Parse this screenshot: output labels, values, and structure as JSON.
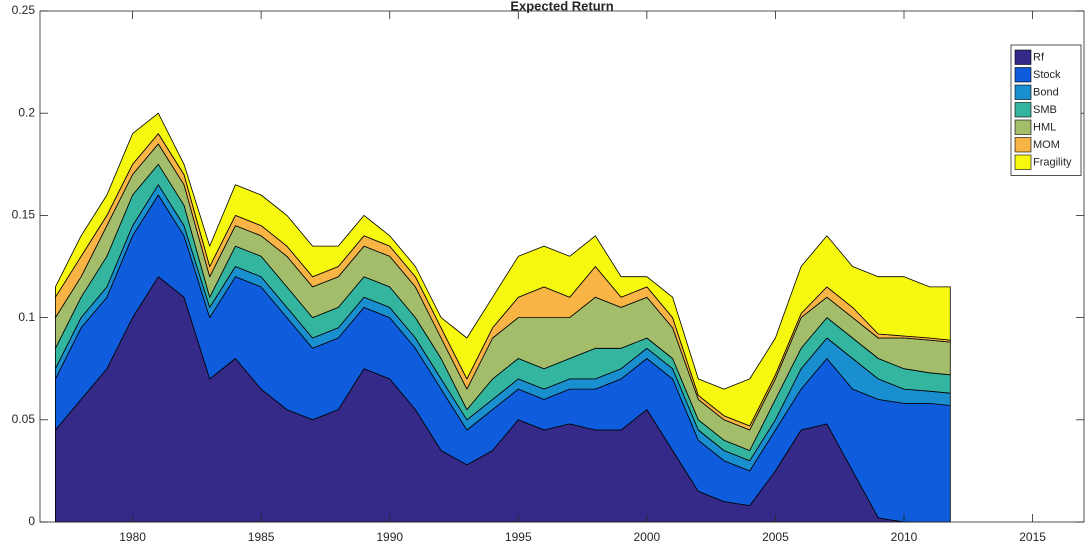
{
  "chart_data": {
    "type": "stacked_area",
    "title": "Expected Return",
    "x": [
      1977,
      1978,
      1979,
      1980,
      1981,
      1982,
      1983,
      1984,
      1985,
      1986,
      1987,
      1988,
      1989,
      1990,
      1991,
      1992,
      1993,
      1994,
      1995,
      1996,
      1997,
      1998,
      1999,
      2000,
      2001,
      2002,
      2003,
      2004,
      2005,
      2006,
      2007,
      2008,
      2009,
      2010,
      2011,
      2011.8
    ],
    "xlim": [
      1976.4,
      2017
    ],
    "xticks": [
      1980,
      1985,
      1990,
      1995,
      2000,
      2005,
      2010,
      2015
    ],
    "ylim": [
      0,
      0.25
    ],
    "yticks": [
      0,
      0.05,
      0.1,
      0.15,
      0.2,
      0.25
    ],
    "legend": "top-right",
    "series": [
      {
        "name": "Rf",
        "color": "#352a87",
        "values": [
          0.045,
          0.06,
          0.075,
          0.1,
          0.12,
          0.11,
          0.07,
          0.08,
          0.065,
          0.055,
          0.05,
          0.055,
          0.075,
          0.07,
          0.055,
          0.035,
          0.028,
          0.035,
          0.05,
          0.045,
          0.048,
          0.045,
          0.045,
          0.055,
          0.035,
          0.015,
          0.01,
          0.008,
          0.025,
          0.045,
          0.048,
          0.025,
          0.002,
          0,
          0,
          0
        ]
      },
      {
        "name": "Stock",
        "color": "#0f5cdd",
        "values": [
          0.025,
          0.035,
          0.035,
          0.04,
          0.04,
          0.03,
          0.03,
          0.04,
          0.05,
          0.045,
          0.035,
          0.035,
          0.03,
          0.03,
          0.03,
          0.03,
          0.017,
          0.02,
          0.015,
          0.015,
          0.017,
          0.02,
          0.025,
          0.025,
          0.035,
          0.025,
          0.02,
          0.017,
          0.02,
          0.02,
          0.032,
          0.04,
          0.058,
          0.058,
          0.058,
          0.057
        ]
      },
      {
        "name": "Bond",
        "color": "#1a8fd0",
        "values": [
          0.005,
          0.005,
          0.005,
          0.005,
          0.005,
          0.005,
          0.005,
          0.005,
          0.005,
          0.005,
          0.005,
          0.005,
          0.005,
          0.005,
          0.005,
          0.005,
          0.005,
          0.005,
          0.005,
          0.005,
          0.005,
          0.005,
          0.005,
          0.005,
          0.005,
          0.005,
          0.005,
          0.005,
          0.005,
          0.01,
          0.01,
          0.015,
          0.01,
          0.007,
          0.006,
          0.006
        ]
      },
      {
        "name": "SMB",
        "color": "#33b59f",
        "values": [
          0.01,
          0.01,
          0.015,
          0.015,
          0.01,
          0.01,
          0.005,
          0.01,
          0.01,
          0.01,
          0.01,
          0.01,
          0.01,
          0.01,
          0.01,
          0.01,
          0.005,
          0.01,
          0.01,
          0.01,
          0.01,
          0.015,
          0.01,
          0.005,
          0.005,
          0.005,
          0.005,
          0.005,
          0.01,
          0.01,
          0.01,
          0.01,
          0.01,
          0.01,
          0.009,
          0.009
        ]
      },
      {
        "name": "HML",
        "color": "#a4bd6b",
        "values": [
          0.015,
          0.01,
          0.015,
          0.01,
          0.01,
          0.01,
          0.01,
          0.01,
          0.01,
          0.015,
          0.015,
          0.015,
          0.015,
          0.015,
          0.015,
          0.01,
          0.01,
          0.02,
          0.02,
          0.025,
          0.02,
          0.025,
          0.02,
          0.02,
          0.015,
          0.01,
          0.01,
          0.01,
          0.01,
          0.015,
          0.01,
          0.01,
          0.01,
          0.015,
          0.016,
          0.016
        ]
      },
      {
        "name": "MOM",
        "color": "#f8b445",
        "values": [
          0.01,
          0.01,
          0.005,
          0.005,
          0.005,
          0.005,
          0.005,
          0.005,
          0.005,
          0.005,
          0.005,
          0.005,
          0.005,
          0.005,
          0.005,
          0.005,
          0.005,
          0.005,
          0.01,
          0.015,
          0.01,
          0.015,
          0.005,
          0.005,
          0.005,
          0.002,
          0.002,
          0.002,
          0.002,
          0.002,
          0.005,
          0.005,
          0.002,
          0.001,
          0.001,
          0.001
        ]
      },
      {
        "name": "Fragility",
        "color": "#f6f80f",
        "values": [
          0.005,
          0.01,
          0.01,
          0.015,
          0.01,
          0.005,
          0.01,
          0.015,
          0.015,
          0.015,
          0.015,
          0.01,
          0.01,
          0.005,
          0.005,
          0.005,
          0.02,
          0.015,
          0.02,
          0.02,
          0.02,
          0.015,
          0.01,
          0.005,
          0.01,
          0.008,
          0.013,
          0.023,
          0.018,
          0.023,
          0.025,
          0.02,
          0.028,
          0.029,
          0.025,
          0.026
        ]
      }
    ]
  }
}
